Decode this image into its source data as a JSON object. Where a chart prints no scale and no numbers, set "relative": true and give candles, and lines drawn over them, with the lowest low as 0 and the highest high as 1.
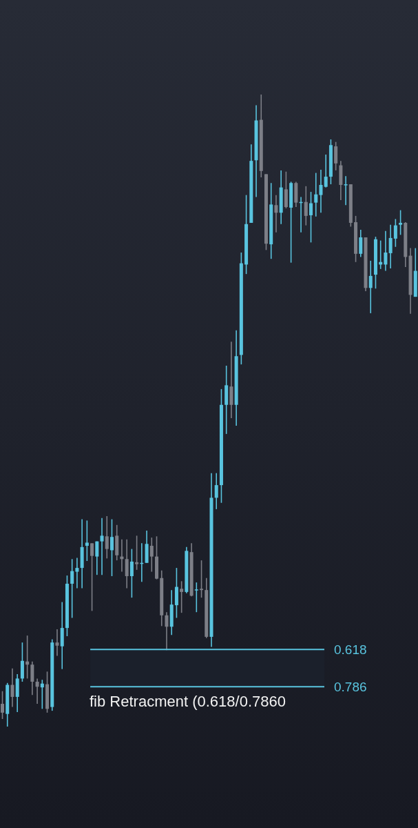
{
  "chart_data": {
    "type": "candlestick",
    "relative": true,
    "categories": [
      null,
      null,
      null,
      null,
      null,
      null,
      null,
      null,
      null,
      null,
      null,
      null,
      null,
      null,
      null,
      null,
      null,
      null,
      null,
      null,
      null,
      null,
      null,
      null,
      null,
      null,
      null,
      null,
      null,
      null,
      null,
      null,
      null,
      null,
      null,
      null,
      null,
      null,
      null,
      null,
      null,
      null,
      null,
      null,
      null,
      null,
      null,
      null,
      null,
      null,
      null,
      null,
      null,
      null,
      null,
      null,
      null,
      null,
      null,
      null,
      null,
      null,
      null,
      null,
      null,
      null,
      null,
      null,
      null,
      null,
      null,
      null,
      null,
      null,
      null,
      null,
      null,
      null,
      null,
      null,
      null,
      null,
      null,
      null
    ],
    "ohlc": [
      [
        0.036,
        0.056,
        0.012,
        0.022
      ],
      [
        0.02,
        0.069,
        0,
        0.066
      ],
      [
        0.066,
        0.092,
        0.031,
        0.047
      ],
      [
        0.047,
        0.083,
        0.023,
        0.076
      ],
      [
        0.076,
        0.133,
        0.071,
        0.104
      ],
      [
        0.103,
        0.144,
        0.076,
        0.098
      ],
      [
        0.098,
        0.103,
        0.05,
        0.071
      ],
      [
        0.071,
        0.076,
        0.036,
        0.063
      ],
      [
        0.062,
        0.074,
        0.028,
        0.068
      ],
      [
        0.067,
        0.087,
        0.022,
        0.028
      ],
      [
        0.031,
        0.138,
        0.025,
        0.133
      ],
      [
        0.133,
        0.154,
        0.112,
        0.128
      ],
      [
        0.127,
        0.197,
        0.091,
        0.156
      ],
      [
        0.156,
        0.239,
        0.143,
        0.226
      ],
      [
        0.226,
        0.265,
        0.172,
        0.246
      ],
      [
        0.245,
        0.267,
        0.219,
        0.251
      ],
      [
        0.251,
        0.328,
        0.219,
        0.284
      ],
      [
        0.286,
        0.326,
        0.262,
        0.291
      ],
      [
        0.29,
        0.29,
        0.183,
        0.27
      ],
      [
        0.269,
        0.293,
        0.24,
        0.293
      ],
      [
        0.293,
        0.33,
        0.24,
        0.302
      ],
      [
        0.301,
        0.333,
        0.266,
        0.281
      ],
      [
        0.279,
        0.328,
        0.238,
        0.3
      ],
      [
        0.302,
        0.319,
        0.263,
        0.271
      ],
      [
        0.269,
        0.296,
        0.245,
        0.265
      ],
      [
        0.265,
        0.296,
        0.219,
        0.238
      ],
      [
        0.238,
        0.281,
        0.204,
        0.261
      ],
      [
        0.26,
        0.302,
        0.248,
        0.257
      ],
      [
        0.258,
        0.29,
        0.229,
        0.259
      ],
      [
        0.259,
        0.31,
        0.259,
        0.289
      ],
      [
        0.286,
        0.299,
        0.245,
        0.269
      ],
      [
        0.269,
        0.301,
        0.233,
        0.234
      ],
      [
        0.235,
        0.247,
        0.159,
        0.176
      ],
      [
        0.176,
        0.181,
        0.121,
        0.158
      ],
      [
        0.158,
        0.216,
        0.145,
        0.193
      ],
      [
        0.192,
        0.251,
        0.172,
        0.221
      ],
      [
        0.218,
        0.23,
        0.18,
        0.213
      ],
      [
        0.213,
        0.284,
        0.211,
        0.278
      ],
      [
        0.276,
        0.29,
        0.206,
        0.207
      ],
      [
        0.216,
        0.228,
        0.181,
        0.217
      ],
      [
        0.218,
        0.263,
        0.204,
        0.216
      ],
      [
        0.216,
        0.235,
        0.14,
        0.142
      ],
      [
        0.142,
        0.401,
        0.126,
        0.362
      ],
      [
        0.362,
        0.401,
        0.344,
        0.382
      ],
      [
        0.382,
        0.534,
        0.354,
        0.509
      ],
      [
        0.509,
        0.571,
        0.463,
        0.54
      ],
      [
        0.538,
        0.609,
        0.488,
        0.509
      ],
      [
        0.509,
        0.627,
        0.476,
        0.586
      ],
      [
        0.588,
        0.75,
        0.573,
        0.733
      ],
      [
        0.731,
        0.841,
        0.716,
        0.795
      ],
      [
        0.797,
        0.921,
        0.797,
        0.895
      ],
      [
        0.896,
        0.983,
        0.838,
        0.959
      ],
      [
        0.96,
        1,
        0.869,
        0.879
      ],
      [
        0.874,
        0.874,
        0.754,
        0.764
      ],
      [
        0.763,
        0.86,
        0.74,
        0.826
      ],
      [
        0.825,
        0.841,
        0.782,
        0.813
      ],
      [
        0.813,
        0.88,
        0.795,
        0.853
      ],
      [
        0.85,
        0.878,
        0.82,
        0.822
      ],
      [
        0.821,
        0.862,
        0.734,
        0.86
      ],
      [
        0.86,
        0.862,
        0.822,
        0.829
      ],
      [
        0.83,
        0.838,
        0.782,
        0.83
      ],
      [
        0.83,
        0.855,
        0.793,
        0.808
      ],
      [
        0.809,
        0.846,
        0.766,
        0.828
      ],
      [
        0.829,
        0.876,
        0.807,
        0.842
      ],
      [
        0.841,
        0.881,
        0.813,
        0.857
      ],
      [
        0.854,
        0.905,
        0.853,
        0.87
      ],
      [
        0.87,
        0.929,
        0.858,
        0.92
      ],
      [
        0.918,
        0.925,
        0.88,
        0.891
      ],
      [
        0.888,
        0.895,
        0.833,
        0.857
      ],
      [
        0.858,
        0.871,
        0.825,
        0.858
      ],
      [
        0.858,
        0.858,
        0.791,
        0.797
      ],
      [
        0.798,
        0.808,
        0.735,
        0.748
      ],
      [
        0.748,
        0.786,
        0.743,
        0.774
      ],
      [
        0.774,
        0.774,
        0.689,
        0.694
      ],
      [
        0.694,
        0.737,
        0.654,
        0.713
      ],
      [
        0.715,
        0.775,
        0.693,
        0.771
      ],
      [
        0.731,
        0.769,
        0.724,
        0.735
      ],
      [
        0.731,
        0.784,
        0.721,
        0.75
      ],
      [
        0.749,
        0.794,
        0.725,
        0.773
      ],
      [
        0.772,
        0.803,
        0.759,
        0.793
      ],
      [
        0.794,
        0.817,
        0.778,
        0.797
      ],
      [
        0.797,
        0.798,
        0.727,
        0.743
      ],
      [
        0.745,
        0.757,
        0.653,
        0.683
      ],
      [
        0.68,
        0.757,
        0.68,
        0.721
      ]
    ],
    "colors": [
      "#7d7f87",
      "#59c4df",
      "#7d7f87",
      "#59c4df",
      "#59c4df",
      "#7d7f87",
      "#7d7f87",
      "#7d7f87",
      "#59c4df",
      "#7d7f87",
      "#59c4df",
      "#7d7f87",
      "#59c4df",
      "#59c4df",
      "#59c4df",
      "#59c4df",
      "#59c4df",
      "#59c4df",
      "#7d7f87",
      "#59c4df",
      "#59c4df",
      "#7d7f87",
      "#59c4df",
      "#7d7f87",
      "#7d7f87",
      "#7d7f87",
      "#59c4df",
      "#7d7f87",
      "#59c4df",
      "#59c4df",
      "#7d7f87",
      "#7d7f87",
      "#7d7f87",
      "#7d7f87",
      "#59c4df",
      "#59c4df",
      "#7d7f87",
      "#59c4df",
      "#7d7f87",
      "#59c4df",
      "#7d7f87",
      "#7d7f87",
      "#59c4df",
      "#59c4df",
      "#59c4df",
      "#59c4df",
      "#7d7f87",
      "#59c4df",
      "#59c4df",
      "#59c4df",
      "#59c4df",
      "#59c4df",
      "#7d7f87",
      "#7d7f87",
      "#59c4df",
      "#7d7f87",
      "#59c4df",
      "#7d7f87",
      "#59c4df",
      "#7d7f87",
      "#59c4df",
      "#7d7f87",
      "#59c4df",
      "#59c4df",
      "#59c4df",
      "#59c4df",
      "#59c4df",
      "#7d7f87",
      "#7d7f87",
      "#59c4df",
      "#7d7f87",
      "#7d7f87",
      "#59c4df",
      "#7d7f87",
      "#59c4df",
      "#59c4df",
      "#59c4df",
      "#59c4df",
      "#59c4df",
      "#59c4df",
      "#59c4df",
      "#7d7f87",
      "#7d7f87",
      "#59c4df"
    ],
    "bands": [
      {
        "axis": "y",
        "from": 0.063,
        "to": 0.122,
        "color": "#1b202b"
      }
    ],
    "ref_lines": [
      {
        "axis": "y",
        "value": 0.122,
        "color": "#59c4df"
      },
      {
        "axis": "y",
        "value": 0.063,
        "color": "#59c4df"
      }
    ],
    "annotations": [
      "0.618",
      "0.786",
      "fib Retracment (0.618/0.7860"
    ]
  }
}
